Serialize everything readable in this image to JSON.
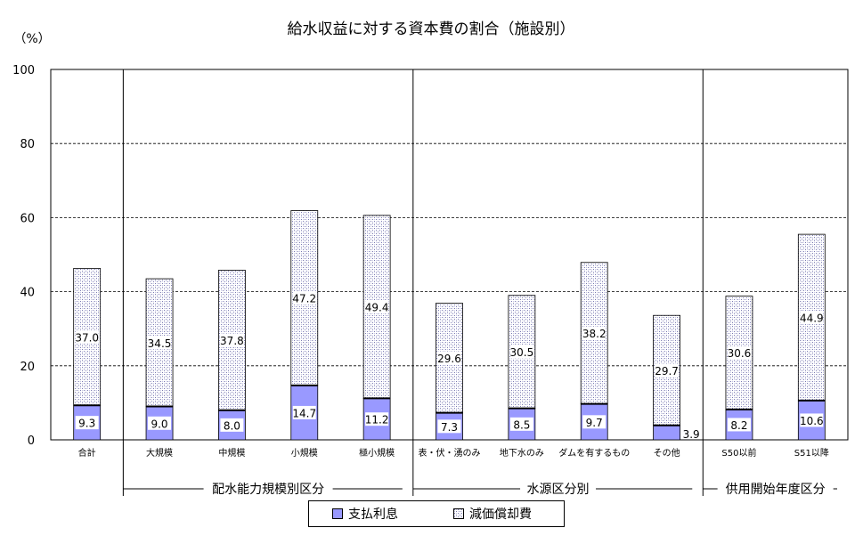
{
  "chart_data": {
    "type": "bar",
    "stacked": true,
    "title": "給水収益に対する資本費の割合（施設別）",
    "y_unit": "（%）",
    "ylim": [
      0,
      100
    ],
    "y_ticks": [
      0,
      20,
      40,
      60,
      80,
      100
    ],
    "grid": "horizontal dashed",
    "categories": [
      "合計",
      "大規模",
      "中規模",
      "小規模",
      "極小規模",
      "表・伏・湧のみ",
      "地下水のみ",
      "ダムを有するもの",
      "その他",
      "S50以前",
      "S51以降"
    ],
    "groups": [
      {
        "label": "",
        "categories": [
          "合計"
        ]
      },
      {
        "label": "配水能力規模別区分",
        "categories": [
          "大規模",
          "中規模",
          "小規模",
          "極小規模"
        ]
      },
      {
        "label": "水源区分別",
        "categories": [
          "表・伏・湧のみ",
          "地下水のみ",
          "ダムを有するもの",
          "その他"
        ]
      },
      {
        "label": "供用開始年度区分",
        "categories": [
          "S50以前",
          "S51以降"
        ]
      }
    ],
    "series": [
      {
        "name": "支払利息",
        "values": [
          9.3,
          9.0,
          8.0,
          14.7,
          11.2,
          7.3,
          8.5,
          9.7,
          3.9,
          8.2,
          10.6
        ],
        "color": "#9999ff"
      },
      {
        "name": "減価償却費",
        "values": [
          37.0,
          34.5,
          37.8,
          47.2,
          49.4,
          29.6,
          30.5,
          38.2,
          29.7,
          30.6,
          44.9
        ],
        "pattern": "dotted-hatch"
      }
    ],
    "legend": "bottom-center"
  }
}
